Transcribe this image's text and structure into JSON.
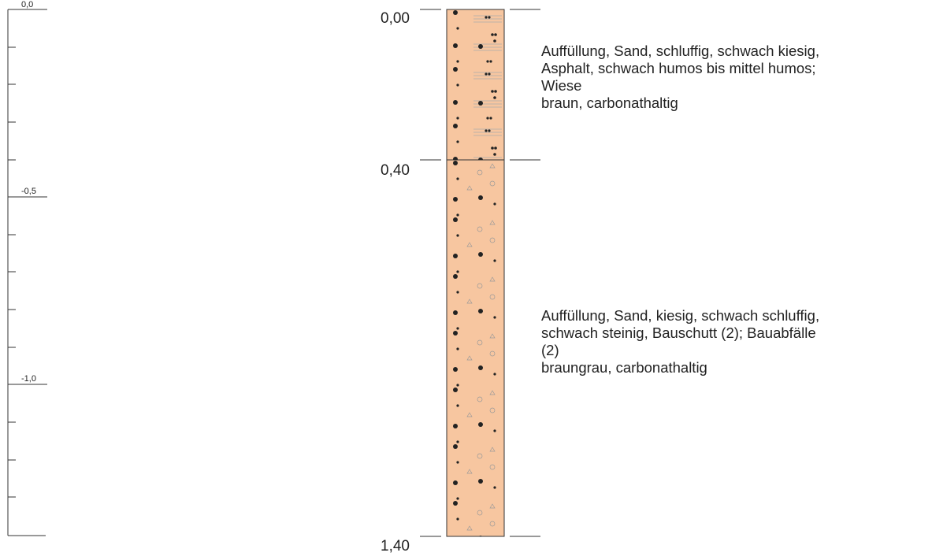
{
  "scale": {
    "labels": [
      "0,0",
      "-0,5",
      "-1,0"
    ]
  },
  "layers": [
    {
      "top": "0,00",
      "description": [
        "Auffüllung, Sand, schluffig, schwach kiesig,",
        "Asphalt, schwach humos bis mittel humos;",
        "Wiese",
        "braun, carbonathaltig"
      ]
    },
    {
      "top": "0,40",
      "description": [
        "Auffüllung, Sand, kiesig, schwach schluffig,",
        "schwach steinig, Bauschutt (2); Bauabfälle",
        "(2)",
        "braungrau, carbonathaltig"
      ]
    }
  ],
  "bottom": "1,40"
}
